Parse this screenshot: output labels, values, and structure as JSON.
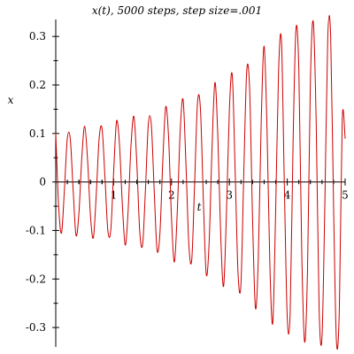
{
  "chart_data": {
    "type": "line",
    "title": "x(t), 5000 steps, step size=.001",
    "xlabel": "t",
    "ylabel": "x",
    "xlim": [
      0,
      5
    ],
    "ylim": [
      -0.34,
      0.335
    ],
    "x_ticks": [
      {
        "value": 1,
        "label": "1"
      },
      {
        "value": 2,
        "label": "2"
      },
      {
        "value": 3,
        "label": "3"
      },
      {
        "value": 4,
        "label": "4"
      },
      {
        "value": 5,
        "label": "5"
      }
    ],
    "y_ticks": [
      {
        "value": -0.3,
        "label": "-0.3"
      },
      {
        "value": -0.2,
        "label": "-0.2"
      },
      {
        "value": -0.1,
        "label": "-0.1"
      },
      {
        "value": 0,
        "label": "0"
      },
      {
        "value": 0.1,
        "label": "0.1"
      },
      {
        "value": 0.2,
        "label": "0.2"
      },
      {
        "value": 0.3,
        "label": "0.3"
      }
    ],
    "grid": false,
    "legend": "none",
    "line_color": "#cc0000",
    "series": [
      {
        "name": "",
        "color": "#cc0000",
        "x": [
          0,
          0.05,
          0.1,
          0.15,
          0.2,
          0.25,
          0.3,
          0.35,
          0.4,
          0.45,
          0.5,
          0.55,
          0.6,
          0.65,
          0.7,
          0.75,
          0.8,
          0.85,
          0.9,
          0.95,
          1.0,
          1.05,
          1.1,
          1.15,
          1.2,
          1.25,
          1.3,
          1.35,
          1.4,
          1.45,
          1.5,
          1.55,
          1.6,
          1.65,
          1.7,
          1.75,
          1.8,
          1.85,
          1.9,
          1.95,
          2.0,
          2.05,
          2.1,
          2.15,
          2.2,
          2.25,
          2.3,
          2.35,
          2.4,
          2.45,
          2.5,
          2.55,
          2.6,
          2.65,
          2.7,
          2.75,
          2.8,
          2.85,
          2.9,
          2.95,
          3.0,
          3.05,
          3.1,
          3.15,
          3.2,
          3.25,
          3.3,
          3.35,
          3.4,
          3.45,
          3.5,
          3.55,
          3.6,
          3.65,
          3.7,
          3.75,
          3.8,
          3.85,
          3.9,
          3.95,
          4.0,
          4.05,
          4.1,
          4.15,
          4.2,
          4.25,
          4.3,
          4.35,
          4.4,
          4.45,
          4.5,
          4.55,
          4.6,
          4.65,
          4.7,
          4.75,
          4.8,
          4.85,
          4.9,
          4.95,
          5.0
        ],
        "y": [
          0.1,
          -0.05,
          -0.105,
          -0.015,
          0.09,
          0.09,
          -0.015,
          -0.11,
          -0.065,
          0.05,
          0.115,
          0.045,
          -0.07,
          -0.115,
          -0.025,
          0.09,
          0.11,
          0.01,
          -0.1,
          -0.1,
          0.02,
          0.125,
          0.08,
          -0.045,
          -0.13,
          -0.06,
          0.075,
          0.135,
          0.04,
          -0.1,
          -0.13,
          -0.015,
          0.12,
          0.12,
          -0.015,
          -0.14,
          -0.105,
          0.045,
          0.155,
          0.09,
          -0.075,
          -0.165,
          -0.06,
          0.105,
          0.17,
          0.035,
          -0.13,
          -0.16,
          0.0,
          0.165,
          0.15,
          -0.035,
          -0.19,
          -0.125,
          0.07,
          0.205,
          0.095,
          -0.11,
          -0.215,
          -0.06,
          0.15,
          0.22,
          0.02,
          -0.19,
          -0.21,
          0.025,
          0.23,
          0.19,
          -0.075,
          -0.26,
          -0.155,
          0.125,
          0.28,
          0.11,
          -0.175,
          -0.29,
          -0.055,
          0.23,
          0.29,
          -0.01,
          -0.28,
          -0.27,
          0.08,
          0.315,
          0.23,
          -0.145,
          -0.33,
          -0.18,
          0.21,
          0.33,
          0.12,
          -0.26,
          -0.32,
          -0.04,
          0.3,
          0.3,
          -0.05,
          -0.33,
          -0.26,
          0.13,
          0.09
        ]
      }
    ]
  }
}
